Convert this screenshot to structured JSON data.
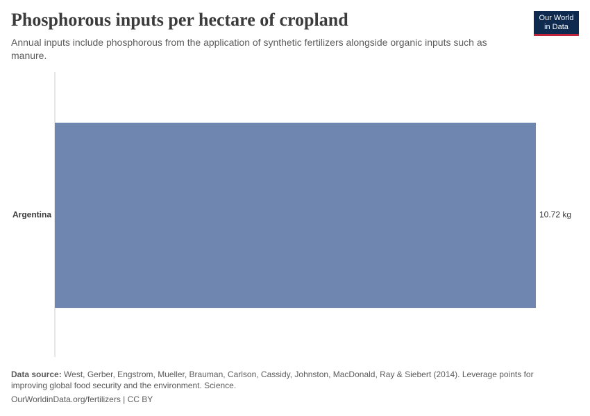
{
  "chart_data": {
    "type": "bar",
    "orientation": "horizontal",
    "title": "Phosphorous inputs per hectare of cropland",
    "subtitle": "Annual inputs include phosphorous from the application of synthetic fertilizers alongside organic inputs such as manure.",
    "categories": [
      "Argentina"
    ],
    "values": [
      10.72
    ],
    "value_labels": [
      "10.72 kg"
    ],
    "color": "#6f87b0",
    "source_label": "Data source:",
    "source": "West, Gerber, Engstrom, Mueller, Brauman, Carlson, Cassidy, Johnston, MacDonald, Ray & Siebert (2014). Leverage points for improving global food security and the environment. Science.",
    "footer": "OurWorldinData.org/fertilizers | CC BY"
  },
  "logo": {
    "line1": "Our World",
    "line2": "in Data"
  }
}
